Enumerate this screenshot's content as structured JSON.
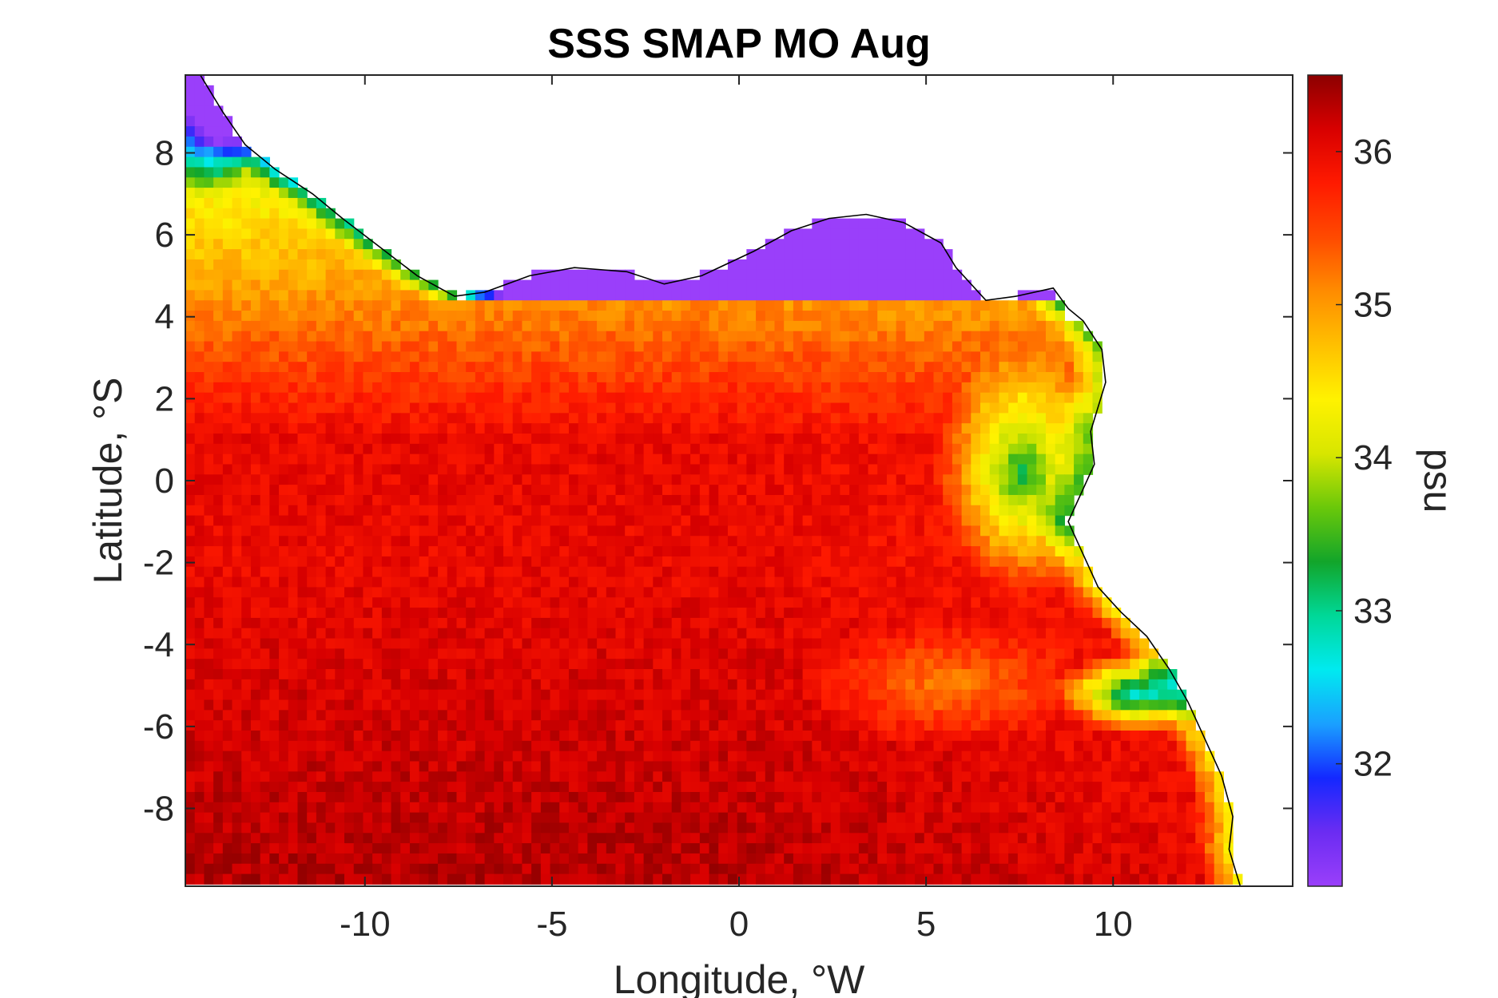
{
  "chart_data": {
    "type": "heatmap",
    "title": "SSS SMAP MO Aug",
    "xlabel": "Longitude, °W",
    "ylabel": "Latitude, °S",
    "xlim": [
      -14.8,
      14.8
    ],
    "ylim": [
      -9.9,
      9.9
    ],
    "xticks": [
      -10,
      -5,
      0,
      5,
      10
    ],
    "xtick_labels": [
      "-10",
      "-5",
      "0",
      "5",
      "10"
    ],
    "yticks": [
      8,
      6,
      4,
      2,
      0,
      -2,
      -4,
      -6,
      -8
    ],
    "ytick_labels": [
      "8",
      "6",
      "4",
      "2",
      "0",
      "-2",
      "-4",
      "-6",
      "-8"
    ],
    "colorbar": {
      "label": "psu",
      "clim": [
        31.2,
        36.5
      ],
      "ticks": [
        32,
        33,
        34,
        35,
        36
      ],
      "tick_labels": [
        "32",
        "33",
        "34",
        "35",
        "36"
      ],
      "colormap_stops": [
        "#9a3ffa",
        "#6b2cf2",
        "#1428ff",
        "#1aa0ff",
        "#00eaf0",
        "#00d898",
        "#12a52a",
        "#6ac80a",
        "#d8e600",
        "#fff200",
        "#ffc000",
        "#ff8c00",
        "#ff4a00",
        "#ff1a00",
        "#d80000",
        "#8c0000"
      ]
    },
    "grid": false,
    "legend": "none",
    "field_description_regions": {
      "open_ocean_south_west": 36.1,
      "central_band": 35.6,
      "north_coastal_strip": 34.9,
      "congo_plume_near_0N_8E": 33.8,
      "river_plume_near_5S_11E": 32.8,
      "far_northwest_coast": 31.9
    }
  }
}
